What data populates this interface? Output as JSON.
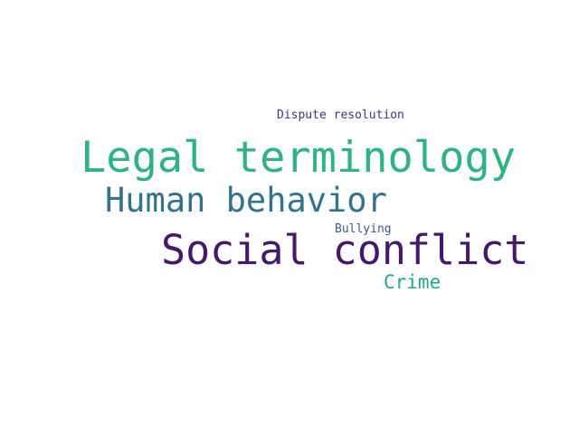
{
  "words": [
    {
      "text": "Dispute resolution",
      "color": "#46337e"
    },
    {
      "text": "Legal terminology",
      "color": "#2fb380"
    },
    {
      "text": "Human behavior",
      "color": "#32728e"
    },
    {
      "text": "Bullying",
      "color": "#3b5b8c"
    },
    {
      "text": "Social conflict",
      "color": "#46186d"
    },
    {
      "text": "Crime",
      "color": "#22a98a"
    }
  ]
}
